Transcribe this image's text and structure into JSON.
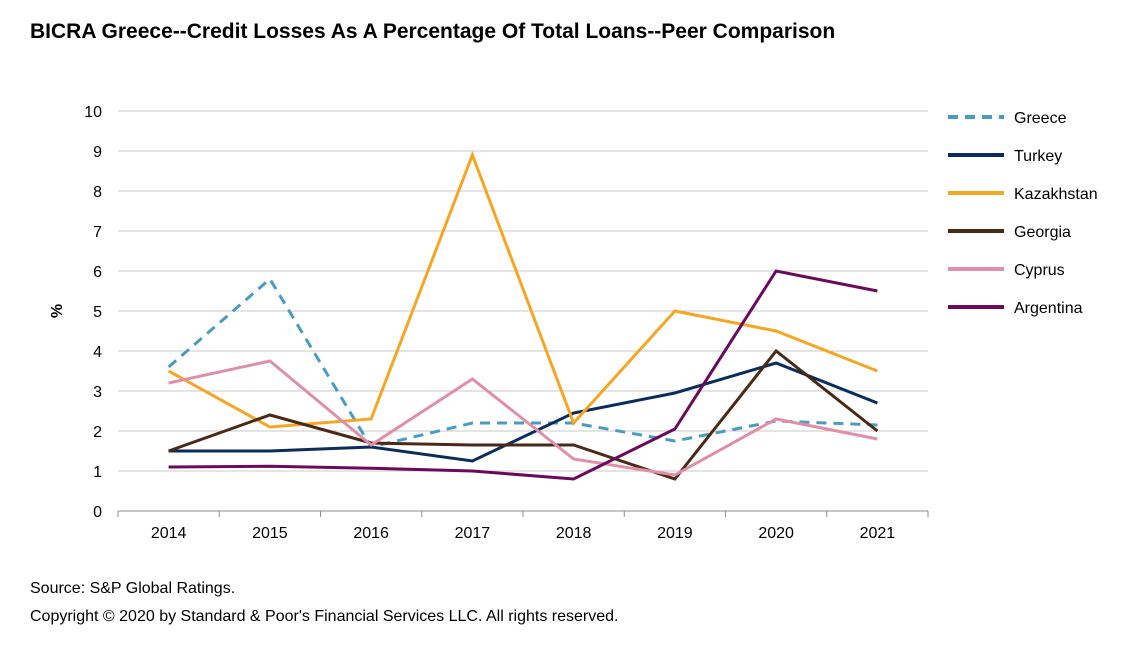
{
  "title": "BICRA Greece--Credit Losses As A Percentage Of Total Loans--Peer Comparison",
  "footer": {
    "source": "Source: S&P Global Ratings.",
    "copyright": "Copyright © 2020 by Standard & Poor's Financial Services LLC. All rights reserved."
  },
  "chart_data": {
    "type": "line",
    "title": "BICRA Greece--Credit Losses As A Percentage Of Total Loans--Peer Comparison",
    "xlabel": "",
    "ylabel": "%",
    "categories": [
      "2014",
      "2015",
      "2016",
      "2017",
      "2018",
      "2019",
      "2020",
      "2021"
    ],
    "ylim": [
      0,
      10
    ],
    "yticks": [
      0,
      1,
      2,
      3,
      4,
      5,
      6,
      7,
      8,
      9,
      10
    ],
    "grid": true,
    "legend_position": "right",
    "series": [
      {
        "name": "Greece",
        "color": "#4a9bc2",
        "dashed": true,
        "values": [
          3.6,
          5.8,
          1.6,
          2.2,
          2.2,
          1.75,
          2.25,
          2.15
        ]
      },
      {
        "name": "Turkey",
        "color": "#0b2d5b",
        "dashed": false,
        "values": [
          1.5,
          1.5,
          1.6,
          1.25,
          2.45,
          2.95,
          3.7,
          2.7
        ]
      },
      {
        "name": "Kazakhstan",
        "color": "#f5a623",
        "dashed": false,
        "values": [
          3.5,
          2.1,
          2.3,
          8.9,
          2.2,
          5.0,
          4.5,
          3.5
        ]
      },
      {
        "name": "Georgia",
        "color": "#4a2a16",
        "dashed": false,
        "values": [
          1.5,
          2.4,
          1.7,
          1.65,
          1.65,
          0.8,
          4.0,
          2.0
        ]
      },
      {
        "name": "Cyprus",
        "color": "#e08fa8",
        "dashed": false,
        "values": [
          3.2,
          3.75,
          1.65,
          3.3,
          1.3,
          0.9,
          2.3,
          1.8
        ]
      },
      {
        "name": "Argentina",
        "color": "#6b0a5c",
        "dashed": false,
        "values": [
          1.1,
          1.12,
          1.07,
          1.0,
          0.8,
          2.05,
          6.0,
          5.5
        ]
      }
    ]
  }
}
